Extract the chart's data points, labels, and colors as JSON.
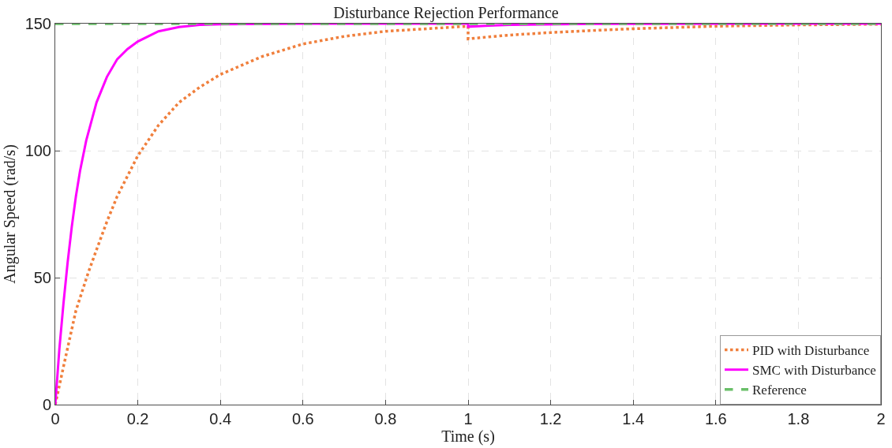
{
  "chart_data": {
    "type": "line",
    "title": "Disturbance Rejection Performance",
    "xlabel": "Time (s)",
    "ylabel": "Angular Speed (rad/s)",
    "series": [
      {
        "name": "PID with Disturbance",
        "color": "#f07f3c",
        "line_style": "dotted",
        "x": [
          0,
          0.02,
          0.05,
          0.08,
          0.1,
          0.125,
          0.15,
          0.2,
          0.25,
          0.3,
          0.35,
          0.4,
          0.5,
          0.6,
          0.7,
          0.8,
          0.9,
          1.0,
          1.0,
          1.05,
          1.1,
          1.2,
          1.3,
          1.4,
          1.5,
          1.6,
          1.8,
          2.0
        ],
        "values": [
          0,
          15,
          37,
          52,
          61,
          72,
          82,
          98,
          110,
          119,
          125,
          130,
          137,
          142,
          145,
          147,
          148,
          149,
          144,
          144.8,
          145.5,
          146.5,
          147.3,
          148,
          148.5,
          149,
          149.5,
          149.8
        ]
      },
      {
        "name": "SMC with Disturbance",
        "color": "#ff00ff",
        "line_style": "solid",
        "x": [
          0,
          0.01,
          0.02,
          0.03,
          0.04,
          0.05,
          0.06,
          0.075,
          0.09,
          0.1,
          0.125,
          0.15,
          0.175,
          0.2,
          0.25,
          0.3,
          0.35,
          0.4,
          0.6,
          1.0,
          1.0,
          1.05,
          1.1,
          1.3,
          2.0
        ],
        "values": [
          0,
          22,
          40,
          56,
          70,
          82,
          92,
          104,
          113,
          119,
          129,
          136,
          140,
          143,
          147,
          148.7,
          149.5,
          149.8,
          150,
          150,
          148.8,
          149.2,
          149.5,
          149.9,
          150
        ]
      },
      {
        "name": "Reference",
        "color": "#6abf69",
        "line_style": "dashed",
        "x": [
          0,
          2
        ],
        "values": [
          150,
          150
        ]
      }
    ],
    "xlim": [
      0,
      2
    ],
    "xticks": [
      0,
      0.2,
      0.4,
      0.6,
      0.8,
      1,
      1.2,
      1.4,
      1.6,
      1.8,
      2
    ],
    "ylim": [
      0,
      150
    ],
    "yticks": [
      0,
      50,
      100,
      150
    ],
    "grid": true,
    "legend": "bottom right",
    "marker": "none"
  }
}
